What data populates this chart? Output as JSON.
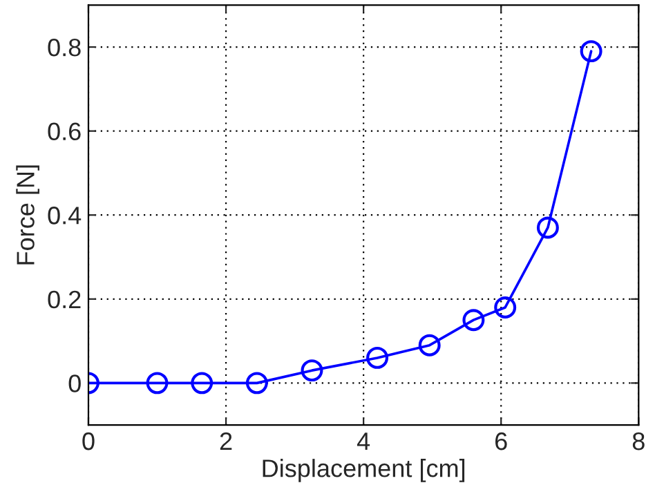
{
  "chart_data": {
    "type": "line",
    "xlabel": "Displacement [cm]",
    "ylabel": "Force [N]",
    "series": [
      {
        "color": "#0000ff",
        "x": [
          0,
          1.0,
          1.65,
          2.45,
          3.25,
          4.2,
          4.96,
          5.6,
          6.06,
          6.68,
          7.31
        ],
        "values": [
          0,
          0,
          0,
          0,
          0.03,
          0.06,
          0.09,
          0.15,
          0.18,
          0.37,
          0.79
        ]
      }
    ],
    "xlim": [
      0,
      8
    ],
    "ylim": [
      -0.1,
      0.9
    ],
    "xticks": [
      0,
      2,
      4,
      6,
      8
    ],
    "yticks": [
      0,
      0.2,
      0.4,
      0.6,
      0.8
    ],
    "grid": true,
    "marker": "circle",
    "line_style": "solid"
  }
}
